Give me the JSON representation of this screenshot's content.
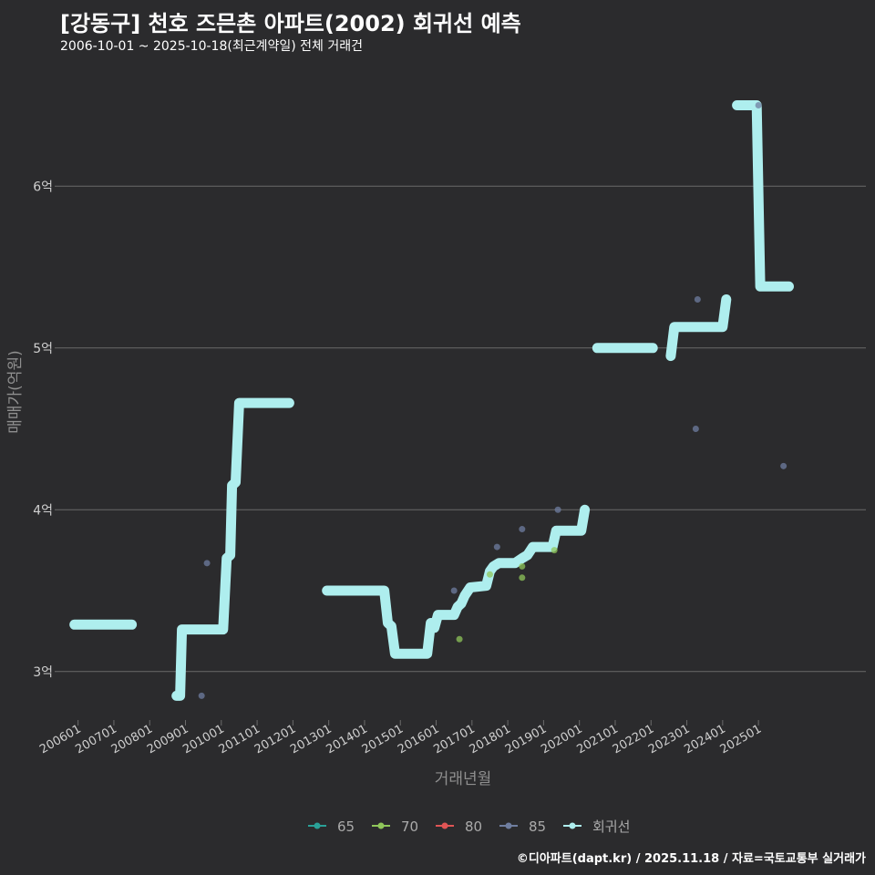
{
  "header": {
    "title": "[강동구] 천호 즈믄촌 아파트(2002) 회귀선 예측",
    "subtitle": "2006-10-01 ~ 2025-10-18(최근계약일) 전체 거래건"
  },
  "footer": {
    "credit": "©디아파트(dapt.kr) / 2025.11.18 / 자료=국토교통부 실거래가"
  },
  "colors": {
    "background": "#2b2b2d",
    "grid": "#6a6a6a",
    "regression": "#aeeeee",
    "s65": "#2aa198",
    "s70": "#8fc65a",
    "s80": "#e05555",
    "s85": "#6f7ea0"
  },
  "chart_data": {
    "type": "scatter",
    "xlabel": "거래년월",
    "ylabel": "매매가(억원)",
    "xlim": [
      2005.5,
      2028.0
    ],
    "ylim": [
      2.7,
      6.7
    ],
    "y_ticks": [
      3,
      4,
      5,
      6
    ],
    "y_tick_labels": [
      "3억",
      "4억",
      "5억",
      "6억"
    ],
    "x_ticks": [
      2006,
      2007,
      2008,
      2009,
      2010,
      2011,
      2012,
      2013,
      2014,
      2015,
      2016,
      2017,
      2018,
      2019,
      2020,
      2021,
      2022,
      2023,
      2024,
      2025
    ],
    "x_tick_labels": [
      "200601",
      "200701",
      "200801",
      "200901",
      "201001",
      "201101",
      "201201",
      "201301",
      "201401",
      "201501",
      "201601",
      "201701",
      "201801",
      "201901",
      "202001",
      "202101",
      "202201",
      "202301",
      "202401",
      "202501"
    ],
    "legend": [
      {
        "name": "65",
        "color_key": "s65"
      },
      {
        "name": "70",
        "color_key": "s70"
      },
      {
        "name": "80",
        "color_key": "s80"
      },
      {
        "name": "85",
        "color_key": "s85"
      },
      {
        "name": "회귀선",
        "color_key": "regression"
      }
    ],
    "series": [
      {
        "name": "70",
        "points": [
          [
            2016.65,
            3.2
          ],
          [
            2018.4,
            3.58
          ],
          [
            2018.4,
            3.65
          ],
          [
            2019.3,
            3.75
          ],
          [
            2017.5,
            3.6
          ]
        ]
      },
      {
        "name": "85",
        "points": [
          [
            2009.45,
            2.85
          ],
          [
            2009.6,
            3.67
          ],
          [
            2016.5,
            3.5
          ],
          [
            2017.7,
            3.77
          ],
          [
            2018.4,
            3.88
          ],
          [
            2019.4,
            4.0
          ],
          [
            2023.25,
            4.5
          ],
          [
            2023.3,
            5.3
          ],
          [
            2025.0,
            6.5
          ],
          [
            2025.7,
            4.27
          ]
        ]
      }
    ],
    "regression_segments": [
      [
        [
          2005.9,
          3.29
        ],
        [
          2007.5,
          3.29
        ]
      ],
      [
        [
          2008.75,
          2.85
        ],
        [
          2008.85,
          2.85
        ],
        [
          2008.9,
          3.26
        ],
        [
          2010.05,
          3.26
        ],
        [
          2010.15,
          3.7
        ],
        [
          2010.25,
          3.72
        ],
        [
          2010.3,
          4.15
        ],
        [
          2010.4,
          4.17
        ],
        [
          2010.5,
          4.66
        ],
        [
          2011.9,
          4.66
        ]
      ],
      [
        [
          2012.95,
          3.5
        ],
        [
          2014.55,
          3.5
        ],
        [
          2014.65,
          3.3
        ],
        [
          2014.75,
          3.28
        ],
        [
          2014.85,
          3.11
        ],
        [
          2015.75,
          3.11
        ],
        [
          2015.85,
          3.3
        ],
        [
          2015.95,
          3.27
        ],
        [
          2016.05,
          3.35
        ],
        [
          2016.5,
          3.35
        ],
        [
          2016.6,
          3.4
        ],
        [
          2016.7,
          3.42
        ],
        [
          2016.8,
          3.47
        ],
        [
          2016.95,
          3.52
        ],
        [
          2017.4,
          3.53
        ],
        [
          2017.5,
          3.62
        ],
        [
          2017.6,
          3.65
        ],
        [
          2017.75,
          3.67
        ],
        [
          2018.2,
          3.67
        ],
        [
          2018.4,
          3.7
        ],
        [
          2018.55,
          3.72
        ],
        [
          2018.7,
          3.77
        ],
        [
          2019.25,
          3.77
        ],
        [
          2019.35,
          3.87
        ],
        [
          2020.05,
          3.87
        ],
        [
          2020.15,
          4.0
        ]
      ],
      [
        [
          2020.5,
          5.0
        ],
        [
          2022.05,
          5.0
        ]
      ],
      [
        [
          2022.55,
          4.95
        ],
        [
          2022.65,
          5.13
        ],
        [
          2024.0,
          5.13
        ],
        [
          2024.1,
          5.3
        ]
      ],
      [
        [
          2024.4,
          6.5
        ],
        [
          2024.95,
          6.5
        ],
        [
          2025.05,
          5.38
        ],
        [
          2025.85,
          5.38
        ]
      ]
    ]
  }
}
